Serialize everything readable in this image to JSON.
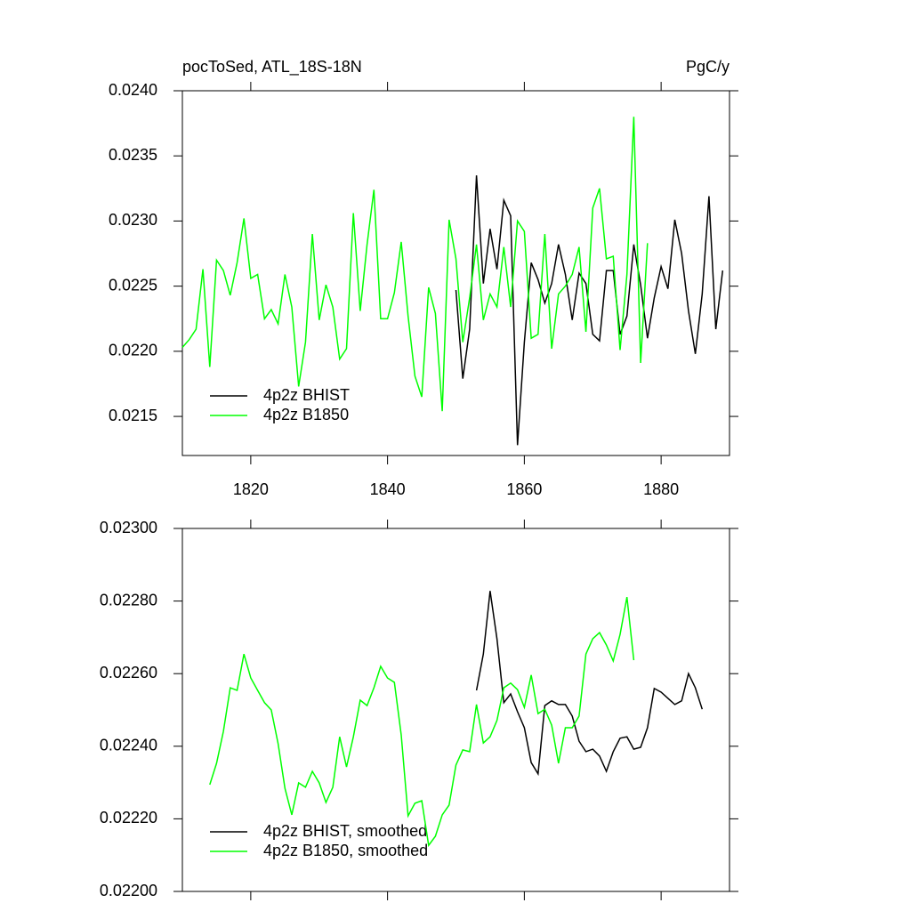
{
  "chart_data": [
    {
      "type": "line",
      "title": "pocToSed, ATL_18S-18N",
      "units": "PgC/y",
      "xlim": [
        1810,
        1890
      ],
      "xticks": [
        1820,
        1840,
        1860,
        1880
      ],
      "show_xtick_labels": true,
      "ylim": [
        0.0212,
        0.024
      ],
      "yticks": [
        {
          "value": 0.0215,
          "label": "0.0215"
        },
        {
          "value": 0.022,
          "label": "0.0220"
        },
        {
          "value": 0.0225,
          "label": "0.0225"
        },
        {
          "value": 0.023,
          "label": "0.0230"
        },
        {
          "value": 0.0235,
          "label": "0.0235"
        },
        {
          "value": 0.024,
          "label": "0.0240"
        }
      ],
      "legend": "lower left",
      "series": [
        {
          "name": "4p2z BHIST",
          "color": "#000000",
          "x": [
            1850,
            1851,
            1852,
            1853,
            1854,
            1855,
            1856,
            1857,
            1858,
            1859,
            1860,
            1861,
            1862,
            1863,
            1864,
            1865,
            1866,
            1867,
            1868,
            1869,
            1870,
            1871,
            1872,
            1873,
            1874,
            1875,
            1876,
            1877,
            1878,
            1879,
            1880,
            1881,
            1882,
            1883,
            1884,
            1885,
            1886,
            1887,
            1888,
            1889
          ],
          "values": [
            0.02247,
            0.02179,
            0.02217,
            0.02335,
            0.02252,
            0.02294,
            0.02263,
            0.02316,
            0.02304,
            0.02128,
            0.02207,
            0.02268,
            0.02255,
            0.02237,
            0.02252,
            0.02282,
            0.02259,
            0.02224,
            0.0226,
            0.02252,
            0.02213,
            0.02208,
            0.02262,
            0.02262,
            0.02213,
            0.02227,
            0.02282,
            0.02251,
            0.0221,
            0.02241,
            0.02265,
            0.02248,
            0.02301,
            0.02275,
            0.02231,
            0.02198,
            0.02244,
            0.02319,
            0.02217,
            0.02262
          ]
        },
        {
          "name": "4p2z B1850",
          "color": "#00ff00",
          "x": [
            1810,
            1811,
            1812,
            1813,
            1814,
            1815,
            1816,
            1817,
            1818,
            1819,
            1820,
            1821,
            1822,
            1823,
            1824,
            1825,
            1826,
            1827,
            1828,
            1829,
            1830,
            1831,
            1832,
            1833,
            1834,
            1835,
            1836,
            1837,
            1838,
            1839,
            1840,
            1841,
            1842,
            1843,
            1844,
            1845,
            1846,
            1847,
            1848,
            1849,
            1850,
            1851,
            1852,
            1853,
            1854,
            1855,
            1856,
            1857,
            1858,
            1859,
            1860,
            1861,
            1862,
            1863,
            1864,
            1865,
            1866,
            1867,
            1868,
            1869,
            1870,
            1871,
            1872,
            1873,
            1874,
            1875,
            1876,
            1877,
            1878
          ],
          "values": [
            0.02203,
            0.02209,
            0.02217,
            0.02263,
            0.02188,
            0.0227,
            0.02262,
            0.02243,
            0.02268,
            0.02302,
            0.02256,
            0.02259,
            0.02225,
            0.02232,
            0.02221,
            0.02259,
            0.02234,
            0.02173,
            0.02207,
            0.0229,
            0.02224,
            0.02251,
            0.02234,
            0.02194,
            0.02202,
            0.02306,
            0.02231,
            0.02282,
            0.02324,
            0.02225,
            0.02225,
            0.02245,
            0.02284,
            0.02227,
            0.02181,
            0.02165,
            0.02249,
            0.02229,
            0.02154,
            0.02301,
            0.02271,
            0.02207,
            0.02241,
            0.02282,
            0.02224,
            0.02244,
            0.02234,
            0.0228,
            0.02234,
            0.023,
            0.02292,
            0.0221,
            0.02213,
            0.0229,
            0.02202,
            0.02244,
            0.0225,
            0.02259,
            0.0228,
            0.02215,
            0.0231,
            0.02325,
            0.02271,
            0.02273,
            0.02201,
            0.02259,
            0.0238,
            0.02191,
            0.02283
          ]
        }
      ]
    },
    {
      "type": "line",
      "xlim": [
        1810,
        1890
      ],
      "xticks": [
        1820,
        1840,
        1860,
        1880
      ],
      "show_xtick_labels": false,
      "ylim": [
        0.022,
        0.023
      ],
      "yticks": [
        {
          "value": 0.022,
          "label": "0.02200"
        },
        {
          "value": 0.0222,
          "label": "0.02220"
        },
        {
          "value": 0.0224,
          "label": "0.02240"
        },
        {
          "value": 0.0226,
          "label": "0.02260"
        },
        {
          "value": 0.0228,
          "label": "0.02280"
        },
        {
          "value": 0.023,
          "label": "0.02300"
        }
      ],
      "legend": "lower left",
      "series": [
        {
          "name": "4p2z BHIST, smoothed",
          "color": "#000000",
          "x": [
            1853,
            1854,
            1855,
            1856,
            1857,
            1858,
            1859,
            1860,
            1861,
            1862,
            1863,
            1864,
            1865,
            1866,
            1867,
            1868,
            1869,
            1870,
            1871,
            1872,
            1873,
            1874,
            1875,
            1876,
            1877,
            1878,
            1879,
            1880,
            1881,
            1882,
            1883,
            1884,
            1885,
            1886
          ],
          "values": [
            0.022554,
            0.022654,
            0.022828,
            0.022696,
            0.02252,
            0.022544,
            0.022495,
            0.022451,
            0.022355,
            0.022324,
            0.022512,
            0.022525,
            0.022515,
            0.022515,
            0.022483,
            0.022414,
            0.022385,
            0.022392,
            0.022373,
            0.022331,
            0.022385,
            0.022422,
            0.022426,
            0.022392,
            0.022397,
            0.022451,
            0.022559,
            0.022549,
            0.022532,
            0.022515,
            0.022525,
            0.0226,
            0.022561,
            0.022502
          ]
        },
        {
          "name": "4p2z B1850, smoothed",
          "color": "#00ff00",
          "x": [
            1814,
            1815,
            1816,
            1817,
            1818,
            1819,
            1820,
            1821,
            1822,
            1823,
            1824,
            1825,
            1826,
            1827,
            1828,
            1829,
            1830,
            1831,
            1832,
            1833,
            1834,
            1835,
            1836,
            1837,
            1838,
            1839,
            1840,
            1841,
            1842,
            1843,
            1844,
            1845,
            1846,
            1847,
            1848,
            1849,
            1850,
            1851,
            1852,
            1853,
            1854,
            1855,
            1856,
            1857,
            1858,
            1859,
            1860,
            1861,
            1862,
            1863,
            1864,
            1865,
            1866,
            1867,
            1868,
            1869,
            1870,
            1871,
            1872,
            1873,
            1874,
            1875,
            1876
          ],
          "values": [
            0.022294,
            0.022353,
            0.022441,
            0.022561,
            0.022554,
            0.022654,
            0.022588,
            0.022554,
            0.02252,
            0.0225,
            0.022407,
            0.022284,
            0.022211,
            0.022299,
            0.022287,
            0.022331,
            0.022299,
            0.022245,
            0.022287,
            0.022426,
            0.022343,
            0.022426,
            0.022527,
            0.022512,
            0.022561,
            0.02262,
            0.022588,
            0.022576,
            0.022431,
            0.022208,
            0.022243,
            0.02225,
            0.022127,
            0.022152,
            0.022211,
            0.022238,
            0.022348,
            0.02239,
            0.022385,
            0.022515,
            0.022409,
            0.022426,
            0.022471,
            0.022561,
            0.022574,
            0.022556,
            0.022507,
            0.022596,
            0.02249,
            0.022502,
            0.022458,
            0.022353,
            0.022451,
            0.022451,
            0.022483,
            0.022654,
            0.022696,
            0.022713,
            0.022679,
            0.022635,
            0.022708,
            0.022811,
            0.022637
          ]
        }
      ]
    }
  ]
}
